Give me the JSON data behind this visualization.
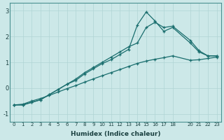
{
  "xlabel": "Humidex (Indice chaleur)",
  "bg_color": "#cce8e8",
  "grid_color": "#b0d4d4",
  "line_color": "#1a6e6e",
  "xlim": [
    -0.5,
    23.5
  ],
  "ylim": [
    -1.3,
    3.3
  ],
  "yticks": [
    -1,
    0,
    1,
    2,
    3
  ],
  "xticks": [
    0,
    1,
    2,
    3,
    4,
    5,
    6,
    7,
    8,
    9,
    10,
    11,
    12,
    13,
    14,
    15,
    16,
    17,
    18,
    20,
    21,
    22,
    23
  ],
  "line1_x": [
    0,
    1,
    2,
    3,
    4,
    5,
    6,
    7,
    8,
    9,
    10,
    11,
    12,
    13,
    14,
    15,
    16,
    17,
    18,
    20,
    21,
    22,
    23
  ],
  "line1_y": [
    -0.65,
    -0.65,
    -0.55,
    -0.45,
    -0.25,
    -0.05,
    0.15,
    0.35,
    0.6,
    0.8,
    1.0,
    1.2,
    1.4,
    1.6,
    1.75,
    2.35,
    2.55,
    2.35,
    2.4,
    1.85,
    1.45,
    1.25,
    1.25
  ],
  "line2_x": [
    0,
    1,
    2,
    3,
    4,
    5,
    6,
    7,
    8,
    9,
    10,
    11,
    12,
    13,
    14,
    15,
    16,
    17,
    18,
    20,
    21,
    22,
    23
  ],
  "line2_y": [
    -0.65,
    -0.65,
    -0.55,
    -0.45,
    -0.25,
    -0.05,
    0.15,
    0.3,
    0.55,
    0.75,
    0.95,
    1.1,
    1.3,
    1.5,
    2.45,
    2.95,
    2.6,
    2.2,
    2.35,
    1.75,
    1.4,
    1.25,
    1.25
  ],
  "line3_x": [
    0,
    1,
    2,
    3,
    4,
    5,
    6,
    7,
    8,
    9,
    10,
    11,
    12,
    13,
    14,
    15,
    16,
    17,
    18,
    20,
    21,
    22,
    23
  ],
  "line3_y": [
    -0.65,
    -0.62,
    -0.5,
    -0.4,
    -0.28,
    -0.15,
    -0.02,
    0.1,
    0.23,
    0.36,
    0.48,
    0.6,
    0.72,
    0.84,
    0.96,
    1.05,
    1.12,
    1.18,
    1.25,
    1.08,
    1.1,
    1.15,
    1.2
  ]
}
